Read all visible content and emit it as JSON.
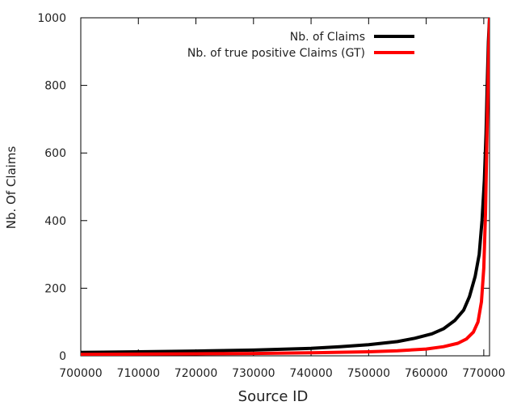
{
  "chart_data": {
    "type": "line",
    "title": "",
    "xlabel": "Source ID",
    "ylabel": "Nb. Of Claims",
    "xlim": [
      700000,
      771000
    ],
    "ylim": [
      0,
      1000
    ],
    "x_ticks": [
      700000,
      710000,
      720000,
      730000,
      740000,
      750000,
      760000,
      770000
    ],
    "x_tick_labels": [
      "700000",
      "710000",
      "720000",
      "730000",
      "740000",
      "750000",
      "760000",
      "770000"
    ],
    "y_ticks": [
      0,
      200,
      400,
      600,
      800,
      1000
    ],
    "y_tick_labels": [
      "0",
      "200",
      "400",
      "600",
      "800",
      "1000"
    ],
    "grid": false,
    "legend_position": "top-right",
    "series": [
      {
        "name": "Nb. of Claims",
        "color": "#000000",
        "x": [
          700000,
          710000,
          720000,
          730000,
          740000,
          745000,
          750000,
          755000,
          758000,
          761000,
          763000,
          765000,
          766500,
          767500,
          768500,
          769200,
          769700,
          770100,
          770400,
          770600,
          770800,
          771000
        ],
        "y": [
          10,
          12,
          14,
          17,
          22,
          27,
          33,
          42,
          52,
          65,
          80,
          105,
          135,
          175,
          235,
          300,
          400,
          520,
          660,
          800,
          930,
          1000
        ]
      },
      {
        "name": "Nb. of true positive Claims (GT)",
        "color": "#ff0000",
        "x": [
          700000,
          710000,
          720000,
          730000,
          740000,
          750000,
          755000,
          760000,
          763000,
          765500,
          767000,
          768200,
          769000,
          769600,
          770000,
          770300,
          770500,
          770700,
          770850,
          771000
        ],
        "y": [
          4,
          5,
          6,
          7,
          9,
          12,
          15,
          20,
          27,
          37,
          50,
          70,
          100,
          160,
          260,
          420,
          600,
          780,
          900,
          1000
        ]
      }
    ]
  }
}
